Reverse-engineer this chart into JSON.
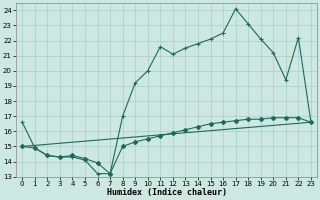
{
  "xlabel": "Humidex (Indice chaleur)",
  "background_color": "#cce8e0",
  "grid_color": "#aacccc",
  "line_color": "#1a6b5a",
  "xlim": [
    -0.5,
    23.5
  ],
  "ylim": [
    13,
    24.5
  ],
  "xticks": [
    0,
    1,
    2,
    3,
    4,
    5,
    6,
    7,
    8,
    9,
    10,
    11,
    12,
    13,
    14,
    15,
    16,
    17,
    18,
    19,
    20,
    21,
    22,
    23
  ],
  "yticks": [
    13,
    14,
    15,
    16,
    17,
    18,
    19,
    20,
    21,
    22,
    23,
    24
  ],
  "line1_x": [
    0,
    23
  ],
  "line1_y": [
    15.0,
    16.6
  ],
  "line2_x": [
    0,
    1,
    2,
    3,
    4,
    5,
    6,
    7,
    8,
    9,
    10,
    11,
    12,
    13,
    14,
    15,
    16,
    17,
    18,
    19,
    20,
    21,
    22,
    23
  ],
  "line2_y": [
    16.6,
    14.9,
    14.4,
    14.3,
    14.3,
    14.1,
    13.2,
    13.2,
    17.0,
    19.2,
    20.0,
    21.6,
    21.1,
    21.5,
    21.8,
    22.1,
    22.5,
    24.1,
    23.1,
    22.1,
    21.2,
    19.4,
    22.2,
    16.6
  ],
  "line3_x": [
    0,
    1,
    2,
    3,
    4,
    5,
    6,
    7,
    8,
    9,
    10,
    11,
    12,
    13,
    14,
    15,
    16,
    17,
    18,
    19,
    20,
    21,
    22,
    23
  ],
  "line3_y": [
    15.0,
    14.9,
    14.4,
    14.3,
    14.4,
    14.2,
    13.9,
    13.2,
    15.0,
    15.3,
    15.5,
    15.7,
    15.9,
    16.1,
    16.3,
    16.5,
    16.6,
    16.7,
    16.8,
    16.8,
    16.9,
    16.9,
    16.9,
    16.6
  ]
}
